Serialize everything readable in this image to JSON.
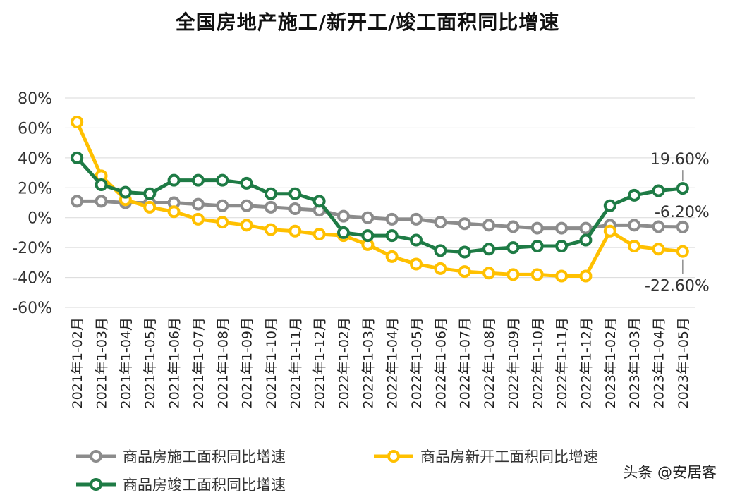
{
  "title": "全国房地产施工/新开工/竣工面积同比增速",
  "credit": "头条 @安居客",
  "colors": {
    "construction": "#8c8c8c",
    "newstart": "#ffc000",
    "completion": "#1e7b45",
    "grid": "#d9d9d9",
    "axisText": "#333333"
  },
  "chart_data": {
    "type": "line",
    "title": "全国房地产施工/新开工/竣工面积同比增速",
    "ylim": [
      -60,
      80
    ],
    "yticks": [
      80,
      60,
      40,
      20,
      0,
      -20,
      -40,
      -60
    ],
    "ytick_labels": [
      "80%",
      "60%",
      "40%",
      "20%",
      "0%",
      "-20%",
      "-40%",
      "-60%"
    ],
    "grid": true,
    "legend_position": "bottom",
    "categories": [
      "2021年1-02月",
      "2021年1-03月",
      "2021年1-04月",
      "2021年1-05月",
      "2021年1-06月",
      "2021年1-07月",
      "2021年1-08月",
      "2021年1-09月",
      "2021年1-10月",
      "2021年1-11月",
      "2021年1-12月",
      "2022年1-02月",
      "2022年1-03月",
      "2022年1-04月",
      "2022年1-05月",
      "2022年1-06月",
      "2022年1-07月",
      "2022年1-08月",
      "2022年1-09月",
      "2022年1-10月",
      "2022年1-11月",
      "2022年1-12月",
      "2023年1-02月",
      "2023年1-03月",
      "2023年1-04月",
      "2023年1-05月"
    ],
    "series": [
      {
        "name": "商品房施工面积同比增速",
        "key": "construction",
        "values": [
          11,
          11,
          10,
          10,
          10,
          9,
          8,
          8,
          7,
          6,
          5,
          1,
          0,
          -1,
          -1,
          -3,
          -4,
          -5,
          -6,
          -7,
          -7,
          -7,
          -5,
          -5,
          -6,
          -6.2
        ]
      },
      {
        "name": "商品房新开工面积同比增速",
        "key": "newstart",
        "values": [
          64,
          28,
          12,
          7,
          4,
          -1,
          -3,
          -5,
          -8,
          -9,
          -11,
          -12,
          -18,
          -26,
          -31,
          -34,
          -36,
          -37,
          -38,
          -38,
          -39,
          -39,
          -9,
          -19,
          -21,
          -22.6
        ]
      },
      {
        "name": "商品房竣工面积同比增速",
        "key": "completion",
        "values": [
          40,
          22,
          17,
          16,
          25,
          25,
          25,
          23,
          16,
          16,
          11,
          -10,
          -12,
          -12,
          -15,
          -22,
          -23,
          -21,
          -20,
          -19,
          -19,
          -15,
          8,
          15,
          18,
          19.6
        ]
      }
    ],
    "annotations": [
      {
        "series": "completion",
        "index": 25,
        "text": "19.60%"
      },
      {
        "series": "construction",
        "index": 25,
        "text": "-6.20%"
      },
      {
        "series": "newstart",
        "index": 25,
        "text": "-22.60%"
      }
    ]
  }
}
